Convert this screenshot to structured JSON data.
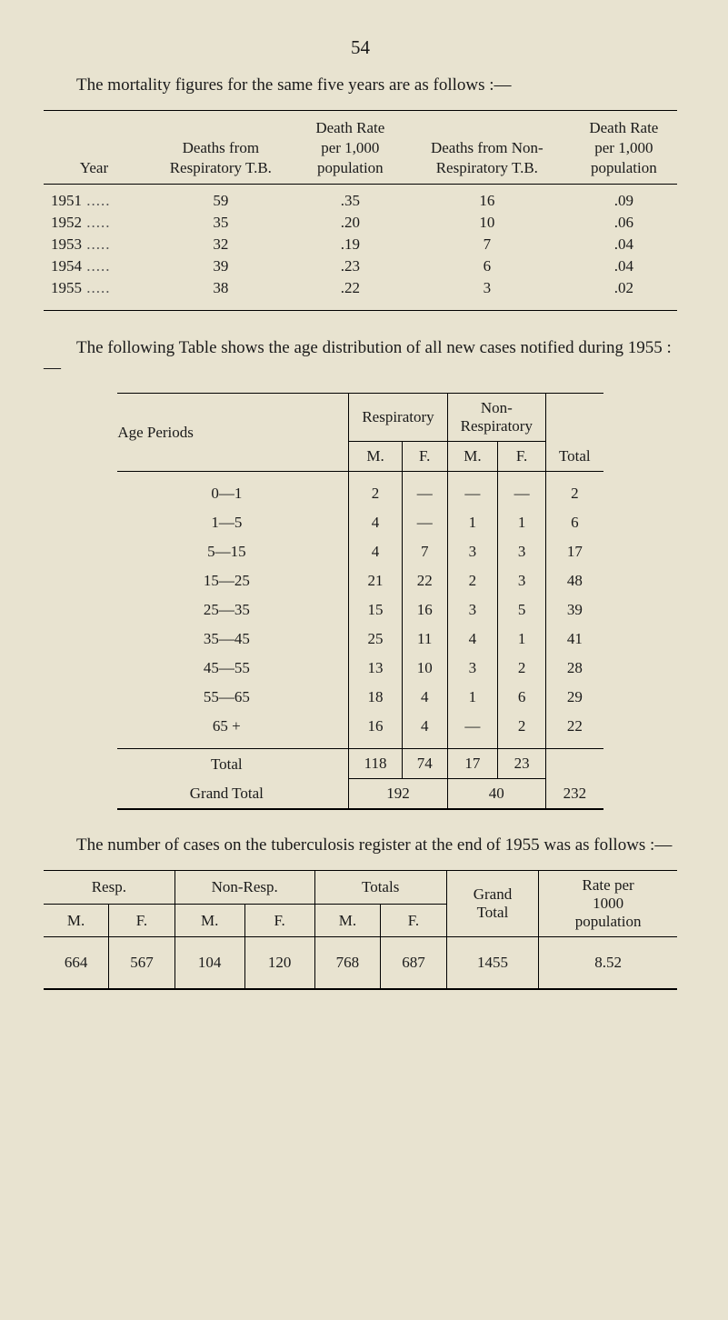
{
  "page_number": "54",
  "intro1": "The mortality figures for the same five years are as follows :—",
  "intro2": "The following Table shows the age distribution of all new cases notified during 1955 :—",
  "intro3": "The number of cases on the tuberculosis register at the end of 1955 was as follows :—",
  "table1": {
    "headers": {
      "year": "Year",
      "deaths_resp": "Deaths from\nRespiratory T.B.",
      "rate_resp": "Death Rate\nper 1,000\npopulation",
      "deaths_nonresp": "Deaths from Non-\nRespiratory T.B.",
      "rate_nonresp": "Death Rate\nper 1,000\npopulation"
    },
    "rows": [
      {
        "year": "1951",
        "d": "59",
        "r": ".35",
        "dn": "16",
        "rn": ".09"
      },
      {
        "year": "1952",
        "d": "35",
        "r": ".20",
        "dn": "10",
        "rn": ".06"
      },
      {
        "year": "1953",
        "d": "32",
        "r": ".19",
        "dn": "7",
        "rn": ".04"
      },
      {
        "year": "1954",
        "d": "39",
        "r": ".23",
        "dn": "6",
        "rn": ".04"
      },
      {
        "year": "1955",
        "d": "38",
        "r": ".22",
        "dn": "3",
        "rn": ".02"
      }
    ],
    "colors": {
      "rule": "#000000",
      "text": "#1a1a1a"
    }
  },
  "table2": {
    "headers": {
      "age": "Age Periods",
      "resp": "Respiratory",
      "nonresp": "Non-\nRespiratory",
      "m": "M.",
      "f": "F.",
      "total": "Total"
    },
    "rows": [
      {
        "age": "0—1",
        "rm": "2",
        "rf": "—",
        "nm": "—",
        "nf": "—",
        "t": "2"
      },
      {
        "age": "1—5",
        "rm": "4",
        "rf": "—",
        "nm": "1",
        "nf": "1",
        "t": "6"
      },
      {
        "age": "5—15",
        "rm": "4",
        "rf": "7",
        "nm": "3",
        "nf": "3",
        "t": "17"
      },
      {
        "age": "15—25",
        "rm": "21",
        "rf": "22",
        "nm": "2",
        "nf": "3",
        "t": "48"
      },
      {
        "age": "25—35",
        "rm": "15",
        "rf": "16",
        "nm": "3",
        "nf": "5",
        "t": "39"
      },
      {
        "age": "35—45",
        "rm": "25",
        "rf": "11",
        "nm": "4",
        "nf": "1",
        "t": "41"
      },
      {
        "age": "45—55",
        "rm": "13",
        "rf": "10",
        "nm": "3",
        "nf": "2",
        "t": "28"
      },
      {
        "age": "55—65",
        "rm": "18",
        "rf": "4",
        "nm": "1",
        "nf": "6",
        "t": "29"
      },
      {
        "age": "65 +",
        "rm": "16",
        "rf": "4",
        "nm": "—",
        "nf": "2",
        "t": "22"
      }
    ],
    "total_row": {
      "label": "Total",
      "rm": "118",
      "rf": "74",
      "nm": "17",
      "nf": "23"
    },
    "grand_row": {
      "label": "Grand Total",
      "resp": "192",
      "nonresp": "40",
      "t": "232"
    },
    "colors": {
      "rule": "#000000"
    }
  },
  "table3": {
    "headers": {
      "resp": "Resp.",
      "nonresp": "Non-Resp.",
      "totals": "Totals",
      "grand": "Grand\nTotal",
      "rate": "Rate per\n1000\npopulation",
      "m": "M.",
      "f": "F."
    },
    "row": {
      "rm": "664",
      "rf": "567",
      "nm": "104",
      "nf": "120",
      "tm": "768",
      "tf": "687",
      "grand": "1455",
      "rate": "8.52"
    },
    "colors": {
      "rule": "#000000"
    }
  },
  "style": {
    "background_color": "#e8e3d0",
    "font_family": "Georgia, 'Times New Roman', serif",
    "body_fontsize_pt": 14,
    "rule_color": "#000000"
  }
}
